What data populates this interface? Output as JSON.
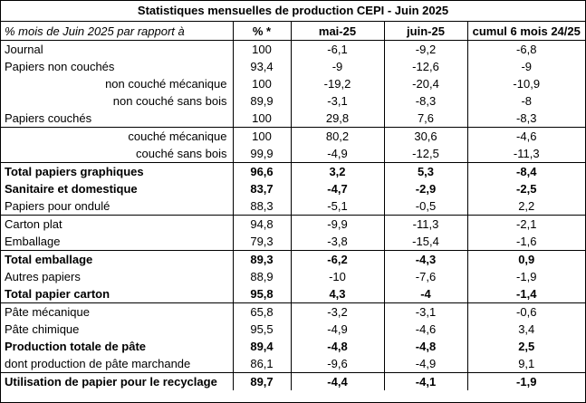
{
  "title": "Statistiques mensuelles de production CEPI - Juin 2025",
  "headers": {
    "label": "% mois de Juin 2025 par rapport à",
    "pct": "% *",
    "m1": "mai-25",
    "m2": "juin-25",
    "cum": "cumul 6 mois 24/25"
  },
  "rows": [
    {
      "label": "Journal",
      "pct": "100",
      "m1": "-6,1",
      "m2": "-9,2",
      "cum": "-6,8"
    },
    {
      "label": "Papiers non couchés",
      "pct": "93,4",
      "m1": "-9",
      "m2": "-12,6",
      "cum": "-9"
    },
    {
      "label": "non couché mécanique",
      "pct": "100",
      "m1": "-19,2",
      "m2": "-20,4",
      "cum": "-10,9"
    },
    {
      "label": "non couché sans bois",
      "pct": "89,9",
      "m1": "-3,1",
      "m2": "-8,3",
      "cum": "-8"
    },
    {
      "label": "Papiers couchés",
      "pct": "100",
      "m1": "29,8",
      "m2": "7,6",
      "cum": "-8,3"
    },
    {
      "label": "couché mécanique",
      "pct": "100",
      "m1": "80,2",
      "m2": "30,6",
      "cum": "-4,6"
    },
    {
      "label": "couché sans bois",
      "pct": "99,9",
      "m1": "-4,9",
      "m2": "-12,5",
      "cum": "-11,3"
    },
    {
      "label": "Total papiers graphiques",
      "pct": "96,6",
      "m1": "3,2",
      "m2": "5,3",
      "cum": "-8,4"
    },
    {
      "label": "Sanitaire et domestique",
      "pct": "83,7",
      "m1": "-4,7",
      "m2": "-2,9",
      "cum": "-2,5"
    },
    {
      "label": "Papiers pour ondulé",
      "pct": "88,3",
      "m1": "-5,1",
      "m2": "-0,5",
      "cum": "2,2"
    },
    {
      "label": "Carton plat",
      "pct": "94,8",
      "m1": "-9,9",
      "m2": "-11,3",
      "cum": "-2,1"
    },
    {
      "label": "Emballage",
      "pct": "79,3",
      "m1": "-3,8",
      "m2": "-15,4",
      "cum": "-1,6"
    },
    {
      "label": "Total emballage",
      "pct": "89,3",
      "m1": "-6,2",
      "m2": "-4,3",
      "cum": "0,9"
    },
    {
      "label": "Autres papiers",
      "pct": "88,9",
      "m1": "-10",
      "m2": "-7,6",
      "cum": "-1,9"
    },
    {
      "label": "Total papier carton",
      "pct": "95,8",
      "m1": "4,3",
      "m2": "-4",
      "cum": "-1,4"
    },
    {
      "label": "Pâte mécanique",
      "pct": "65,8",
      "m1": "-3,2",
      "m2": "-3,1",
      "cum": "-0,6"
    },
    {
      "label": "Pâte chimique",
      "pct": "95,5",
      "m1": "-4,9",
      "m2": "-4,6",
      "cum": "3,4"
    },
    {
      "label": "Production totale de pâte",
      "pct": "89,4",
      "m1": "-4,8",
      "m2": "-4,8",
      "cum": "2,5"
    },
    {
      "label": "dont production de pâte marchande",
      "pct": "86,1",
      "m1": "-9,6",
      "m2": "-4,9",
      "cum": "9,1"
    },
    {
      "label": "Utilisation de papier pour le recyclage",
      "pct": "89,7",
      "m1": "-4,4",
      "m2": "-4,1",
      "cum": "-1,9"
    }
  ]
}
